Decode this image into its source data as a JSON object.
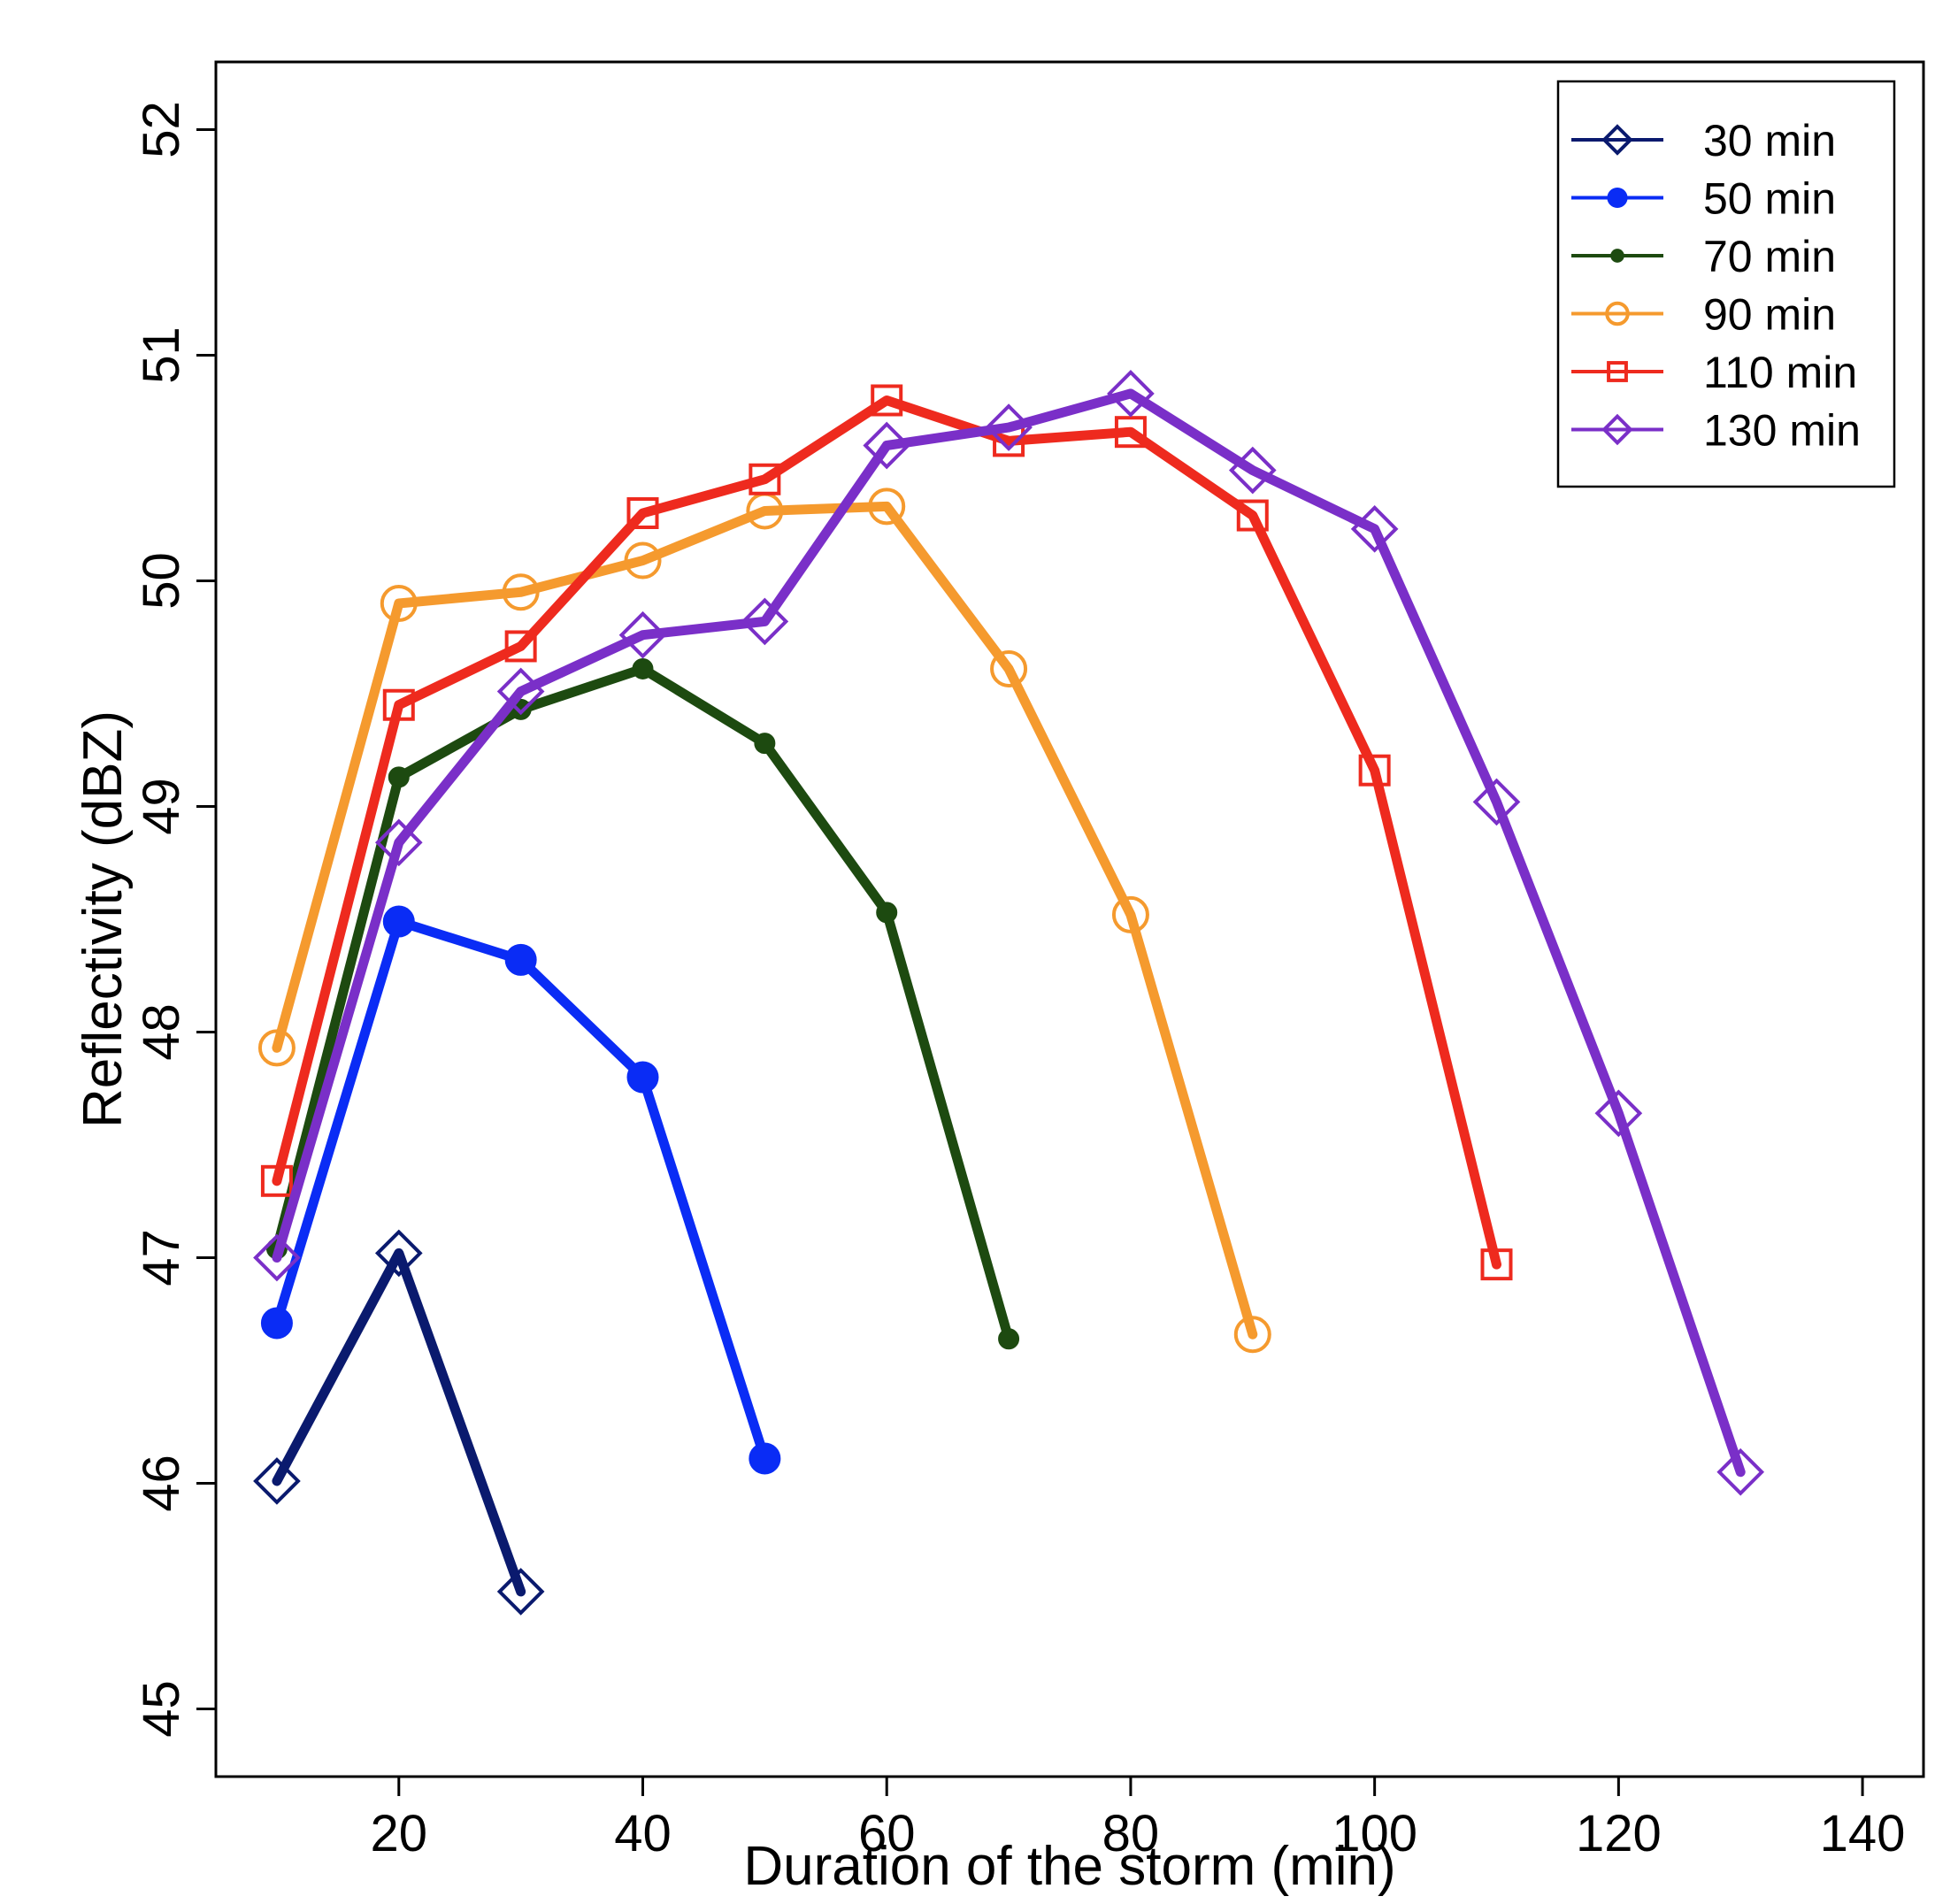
{
  "chart_data": {
    "type": "line",
    "title": "",
    "xlabel": "Duration of the storm (min)",
    "ylabel": "Reflectivity (dBZ)",
    "xlim": [
      5,
      145
    ],
    "ylim": [
      44.7,
      52.3
    ],
    "xticks": [
      "20",
      "40",
      "60",
      "80",
      "100",
      "120",
      "140"
    ],
    "yticks": [
      "45",
      "46",
      "47",
      "48",
      "49",
      "50",
      "51",
      "52"
    ],
    "legend_position": "top-right",
    "series": [
      {
        "name": "30 min",
        "color": "#0a1a6e",
        "marker": "open-diamond",
        "x": [
          10,
          20,
          30
        ],
        "values": [
          46.01,
          47.02,
          45.52
        ]
      },
      {
        "name": "50 min",
        "color": "#0a2cf5",
        "marker": "filled-circle",
        "x": [
          10,
          20,
          30,
          40,
          50
        ],
        "values": [
          46.71,
          48.49,
          48.32,
          47.8,
          46.11
        ]
      },
      {
        "name": "70 min",
        "color": "#1d4a10",
        "marker": "small-filled-circle",
        "x": [
          10,
          20,
          30,
          40,
          50,
          60,
          70
        ],
        "values": [
          47.04,
          49.13,
          49.43,
          49.61,
          49.28,
          48.53,
          46.64
        ]
      },
      {
        "name": "90 min",
        "color": "#f59a2e",
        "marker": "open-circle",
        "x": [
          10,
          20,
          30,
          40,
          50,
          60,
          70,
          80,
          90
        ],
        "values": [
          47.93,
          49.9,
          49.95,
          50.09,
          50.31,
          50.33,
          49.61,
          48.52,
          46.66
        ]
      },
      {
        "name": "110 min",
        "color": "#ee2a1e",
        "marker": "open-square",
        "x": [
          10,
          20,
          30,
          40,
          50,
          60,
          70,
          80,
          90,
          100,
          110
        ],
        "values": [
          47.34,
          49.45,
          49.71,
          50.3,
          50.45,
          50.8,
          50.62,
          50.66,
          50.29,
          49.16,
          46.97
        ]
      },
      {
        "name": "130 min",
        "color": "#7a2fc8",
        "marker": "open-diamond",
        "x": [
          10,
          20,
          30,
          40,
          50,
          60,
          70,
          80,
          90,
          100,
          110,
          120,
          130
        ],
        "values": [
          47.0,
          48.84,
          49.51,
          49.76,
          49.82,
          50.6,
          50.68,
          50.83,
          50.49,
          50.23,
          49.02,
          47.64,
          46.05
        ]
      }
    ]
  }
}
